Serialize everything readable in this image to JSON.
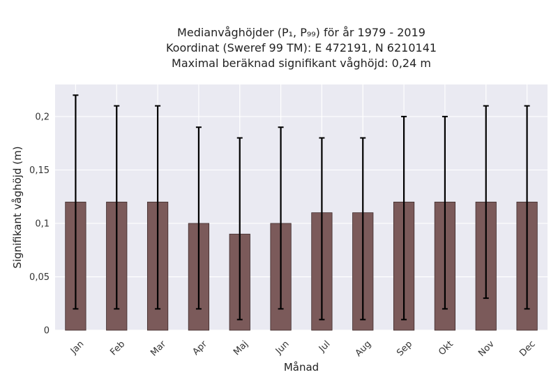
{
  "chart_data": {
    "type": "bar",
    "title_lines": [
      "Medianvåghöjder (P₁, P₉₉) för år 1979 - 2019",
      "Koordinat (Sweref 99 TM): E 472191, N 6210141",
      "Maximal beräknad signifikant våghöjd: 0,24 m"
    ],
    "xlabel": "Månad",
    "ylabel": "Signifikant våghöjd (m)",
    "categories": [
      "Jan",
      "Feb",
      "Mar",
      "Apr",
      "Maj",
      "Jun",
      "Jul",
      "Aug",
      "Sep",
      "Okt",
      "Nov",
      "Dec"
    ],
    "values": [
      0.12,
      0.12,
      0.12,
      0.1,
      0.09,
      0.1,
      0.11,
      0.11,
      0.12,
      0.12,
      0.12,
      0.12
    ],
    "p1": [
      0.02,
      0.02,
      0.02,
      0.02,
      0.01,
      0.02,
      0.01,
      0.01,
      0.01,
      0.02,
      0.03,
      0.02
    ],
    "p99": [
      0.22,
      0.21,
      0.21,
      0.19,
      0.18,
      0.19,
      0.18,
      0.18,
      0.2,
      0.2,
      0.21,
      0.21
    ],
    "ylim": [
      0,
      0.23
    ],
    "yticks": [
      0,
      0.05,
      0.1,
      0.15,
      0.2
    ],
    "ytick_labels": [
      "0",
      "0,05",
      "0,1",
      "0,15",
      "0,2"
    ],
    "grid": true,
    "colors": {
      "bar": "#7b5a5a",
      "bar_edge": "#3d2a2a",
      "error": "#000000",
      "plot_bg": "#eaeaf2",
      "grid": "#ffffff"
    }
  }
}
